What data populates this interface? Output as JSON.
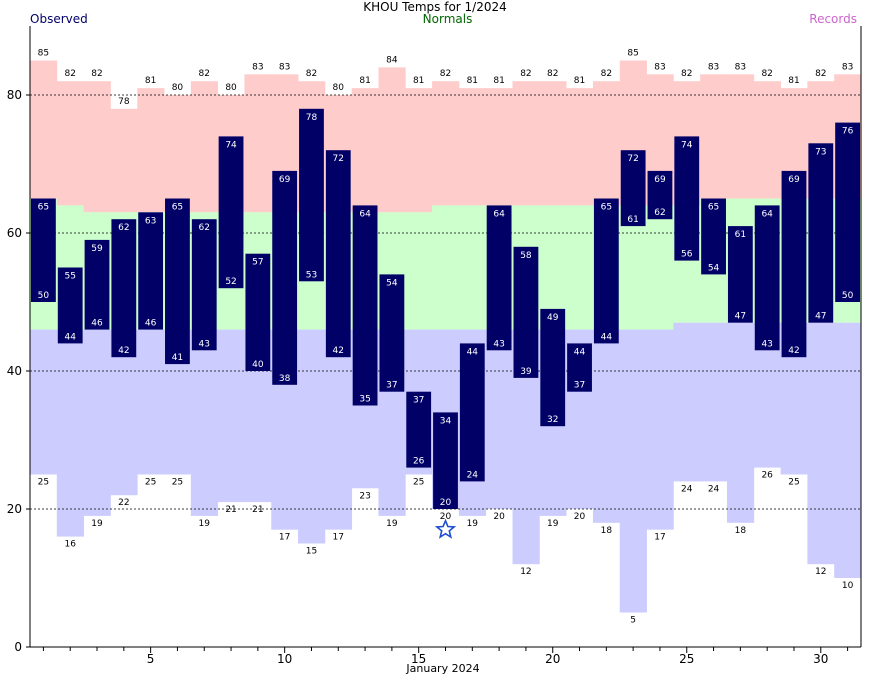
{
  "chart_data": {
    "type": "bar",
    "title": "KHOU Temps for 1/2024",
    "xlabel": "January 2024",
    "ylabel": "",
    "ylim": [
      0,
      90
    ],
    "xlim": [
      0.5,
      31.5
    ],
    "grid": "dashed horizontal at 20, 40, 60, 80",
    "legend": {
      "observed": "Observed",
      "normals": "Normals",
      "records": "Records"
    },
    "colors": {
      "observed": "#000066",
      "observed_text": "#000066",
      "normals_text": "#006600",
      "records_text": "#cc66cc",
      "record_band": "#ffcccc",
      "normal_band": "#ccffcc",
      "record_low_band": "#ccccff",
      "star": "#1f4fd0"
    },
    "x_ticks": [
      5,
      10,
      15,
      20,
      25,
      30
    ],
    "y_ticks": [
      0,
      20,
      40,
      60,
      80
    ],
    "days": [
      1,
      2,
      3,
      4,
      5,
      6,
      7,
      8,
      9,
      10,
      11,
      12,
      13,
      14,
      15,
      16,
      17,
      18,
      19,
      20,
      21,
      22,
      23,
      24,
      25,
      26,
      27,
      28,
      29,
      30,
      31
    ],
    "series": [
      {
        "name": "Observed High",
        "values": [
          65,
          55,
          59,
          62,
          63,
          65,
          62,
          74,
          57,
          69,
          78,
          72,
          64,
          54,
          37,
          34,
          44,
          64,
          58,
          49,
          44,
          65,
          72,
          69,
          74,
          65,
          61,
          64,
          69,
          73,
          76
        ]
      },
      {
        "name": "Observed Low",
        "values": [
          50,
          44,
          46,
          42,
          46,
          41,
          43,
          52,
          40,
          38,
          53,
          42,
          35,
          37,
          26,
          20,
          24,
          43,
          39,
          32,
          37,
          44,
          61,
          62,
          56,
          54,
          47,
          43,
          42,
          47,
          50
        ]
      },
      {
        "name": "Normal High",
        "values": [
          65,
          64,
          63,
          63,
          63,
          63,
          63,
          63,
          63,
          63,
          63,
          63,
          63,
          63,
          63,
          64,
          64,
          64,
          64,
          64,
          64,
          64,
          64,
          64,
          64,
          65,
          65,
          65,
          65,
          65,
          65
        ]
      },
      {
        "name": "Normal Low",
        "values": [
          46,
          46,
          46,
          46,
          46,
          46,
          46,
          46,
          46,
          46,
          46,
          46,
          46,
          46,
          46,
          46,
          46,
          46,
          46,
          46,
          46,
          46,
          46,
          46,
          47,
          47,
          47,
          47,
          47,
          47,
          47
        ]
      },
      {
        "name": "Record High",
        "values": [
          85,
          82,
          82,
          78,
          81,
          80,
          82,
          80,
          83,
          83,
          82,
          80,
          81,
          84,
          81,
          82,
          81,
          81,
          82,
          82,
          81,
          82,
          85,
          83,
          82,
          83,
          83,
          82,
          81,
          82,
          83
        ]
      },
      {
        "name": "Record Low",
        "values": [
          25,
          16,
          19,
          22,
          25,
          25,
          19,
          21,
          21,
          17,
          15,
          17,
          23,
          19,
          25,
          20,
          19,
          20,
          12,
          19,
          20,
          18,
          5,
          17,
          24,
          24,
          18,
          26,
          25,
          12,
          10
        ]
      }
    ],
    "annotations": [
      {
        "type": "star",
        "day": 16,
        "value": 17,
        "meaning": "record low set"
      }
    ]
  }
}
